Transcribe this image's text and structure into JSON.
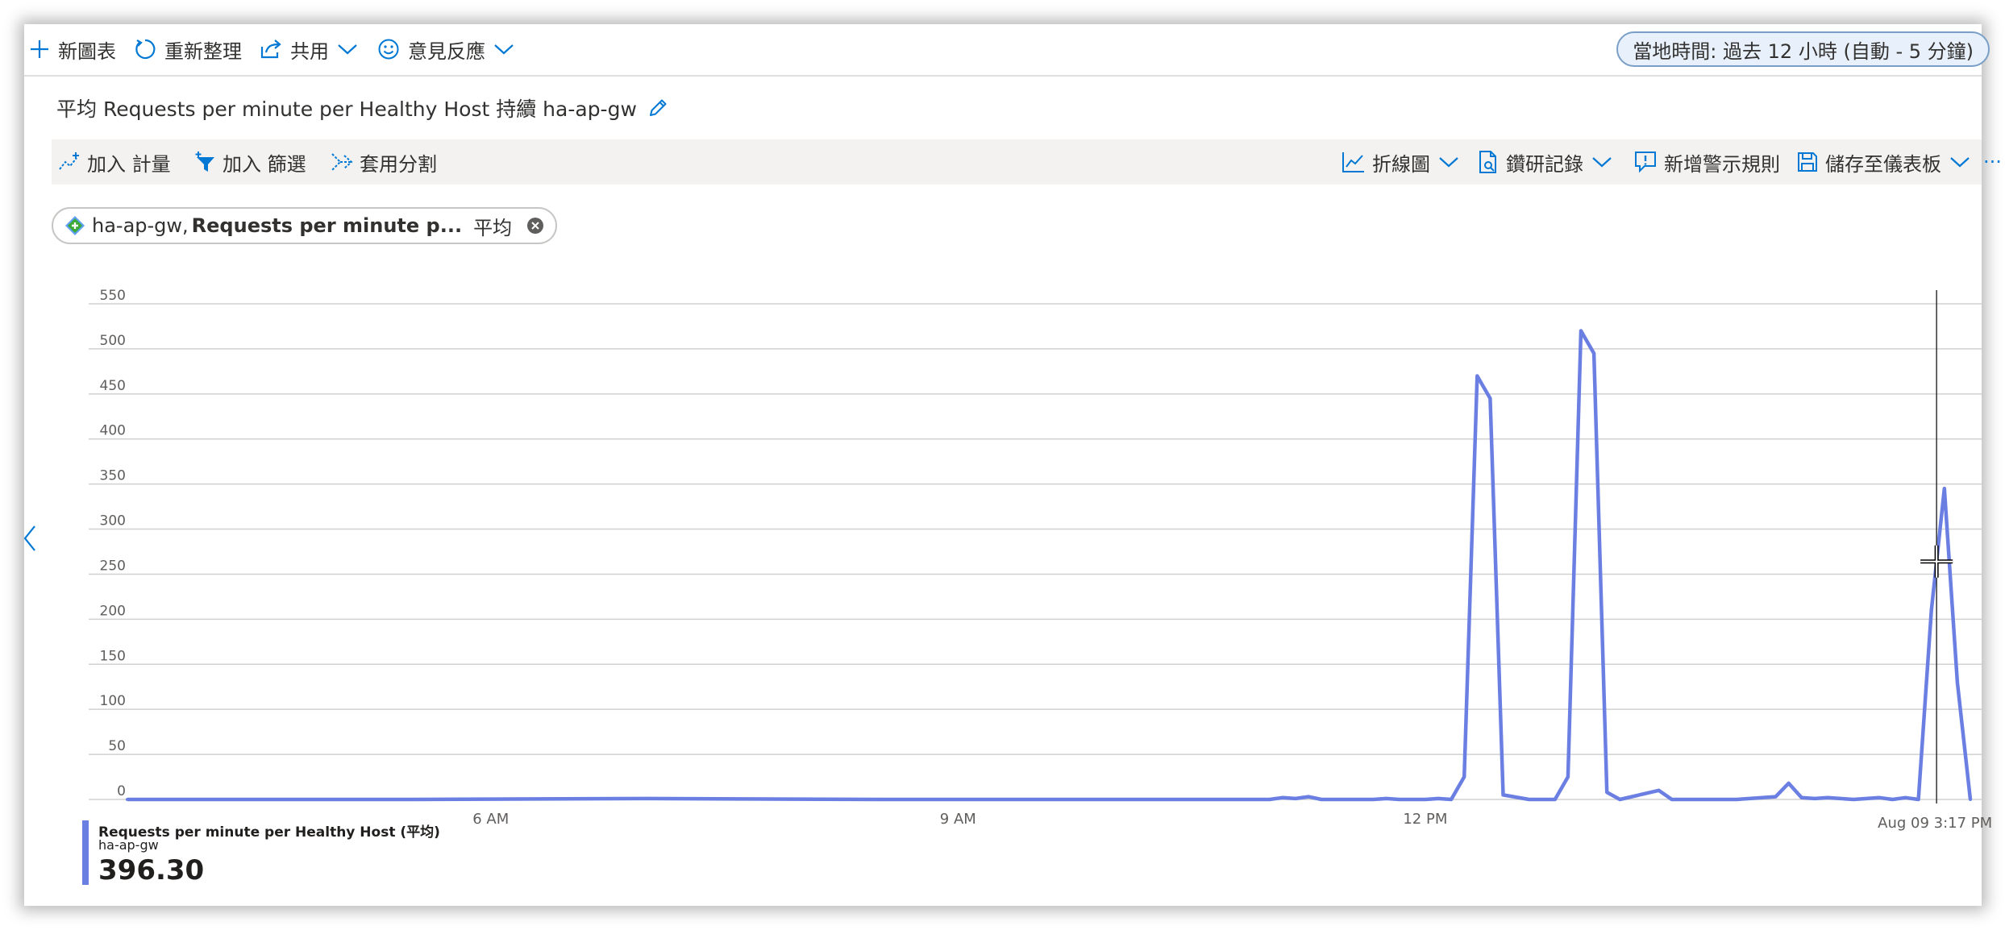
{
  "toolbar": {
    "new_chart": "新圖表",
    "refresh": "重新整理",
    "share": "共用",
    "feedback": "意見反應",
    "time_range": "當地時間: 過去 12 小時 (自動 - 5 分鐘)"
  },
  "chart_title": "平均 Requests per minute per Healthy Host 持續 ha-ap-gw",
  "chart_toolbar": {
    "add_metric": "加入 計量",
    "add_filter": "加入 篩選",
    "apply_split": "套用分割",
    "line_chart": "折線圖",
    "drill_logs": "鑽研記錄",
    "new_alert": "新增警示規則",
    "save_dashboard": "儲存至儀表板",
    "more": "···"
  },
  "metric_pill": {
    "resource": "ha-ap-gw,",
    "metric": "Requests per minute p...",
    "aggregation": "平均"
  },
  "cursor_label": "Aug 09 3:17 PM",
  "legend": {
    "name": "Requests per minute per Healthy Host (平均)",
    "resource": "ha-ap-gw",
    "value": "396.30"
  },
  "colors": {
    "series": "#6b7fe3",
    "accent": "#0078d4",
    "grid": "#d0d0d0"
  },
  "chart_data": {
    "type": "line",
    "ylim": [
      0,
      550
    ],
    "yticks": [
      0,
      50,
      100,
      150,
      200,
      250,
      300,
      350,
      400,
      450,
      500,
      550
    ],
    "xlim": [
      "03:40",
      "15:30"
    ],
    "xticks": [
      {
        "label": "6 AM",
        "t": "06:00"
      },
      {
        "label": "9 AM",
        "t": "09:00"
      },
      {
        "label": "12 PM",
        "t": "12:00"
      }
    ],
    "cursor_time": "15:17",
    "grid": true,
    "series": [
      {
        "x": [
          "03:40",
          "05:30",
          "07:00",
          "08:30",
          "10:00",
          "10:55",
          "11:00",
          "11:05",
          "11:10",
          "11:15",
          "11:20",
          "11:40",
          "11:45",
          "11:50",
          "11:55",
          "12:00",
          "12:05",
          "12:10",
          "12:15",
          "12:20",
          "12:25",
          "12:30",
          "12:40",
          "12:45",
          "12:50",
          "12:55",
          "13:00",
          "13:05",
          "13:10",
          "13:15",
          "13:30",
          "13:35",
          "13:40",
          "13:50",
          "13:55",
          "14:00",
          "14:15",
          "14:20",
          "14:25",
          "14:30",
          "14:35",
          "14:40",
          "14:45",
          "14:50",
          "14:55",
          "15:00",
          "15:05",
          "15:10",
          "15:15",
          "15:20",
          "15:25",
          "15:30"
        ],
        "values": [
          0,
          0,
          1,
          0,
          0,
          0,
          0,
          2,
          1,
          3,
          0,
          0,
          1,
          0,
          0,
          0,
          1,
          0,
          25,
          470,
          445,
          5,
          0,
          0,
          0,
          25,
          520,
          495,
          8,
          0,
          10,
          0,
          0,
          0,
          0,
          0,
          3,
          18,
          2,
          1,
          2,
          1,
          0,
          1,
          2,
          0,
          2,
          0,
          210,
          345,
          130,
          0
        ]
      }
    ]
  }
}
